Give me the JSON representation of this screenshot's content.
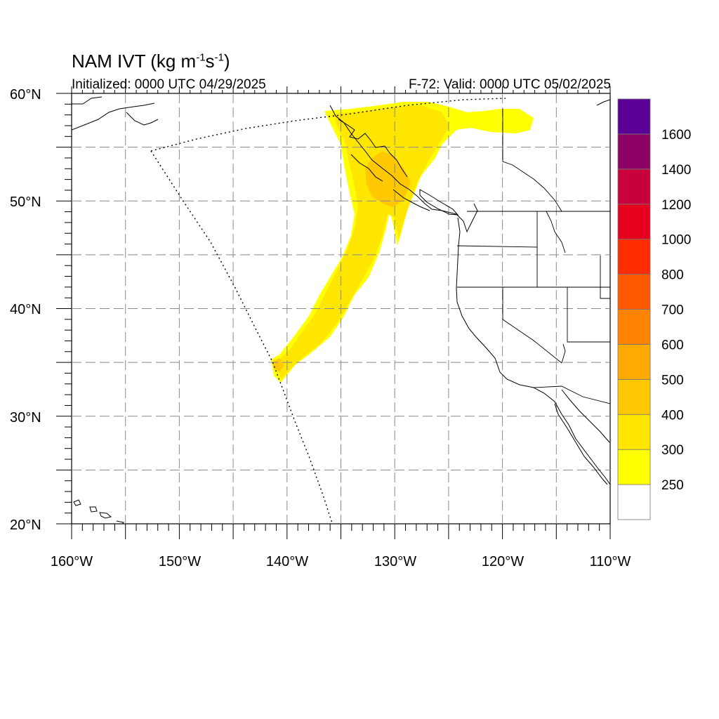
{
  "title": {
    "main": "NAM IVT (kg m",
    "sup1": "-1",
    "mid": "s",
    "sup2": "-1",
    "end": ")"
  },
  "initialized_label": "Initialized: 0000 UTC 04/29/2025",
  "valid_label": "F-72: Valid: 0000 UTC 05/02/2025",
  "axes": {
    "lat_labels": [
      "60°N",
      "50°N",
      "40°N",
      "30°N",
      "20°N"
    ],
    "lon_labels": [
      "160°W",
      "150°W",
      "140°W",
      "130°W",
      "120°W",
      "110°W"
    ],
    "lat_range": [
      20,
      60
    ],
    "lon_range": [
      -160,
      -110
    ]
  },
  "colorbar": {
    "levels": [
      {
        "label": "",
        "color": "#ffffff"
      },
      {
        "label": "250",
        "color": "#ffff00"
      },
      {
        "label": "300",
        "color": "#ffe600"
      },
      {
        "label": "400",
        "color": "#ffc800"
      },
      {
        "label": "500",
        "color": "#ffaa00"
      },
      {
        "label": "600",
        "color": "#ff8200"
      },
      {
        "label": "700",
        "color": "#ff5a00"
      },
      {
        "label": "800",
        "color": "#ff2d00"
      },
      {
        "label": "1000",
        "color": "#e6001e"
      },
      {
        "label": "1200",
        "color": "#c8003c"
      },
      {
        "label": "1400",
        "color": "#8c0064"
      },
      {
        "label": "1600",
        "color": "#5a0096"
      }
    ]
  },
  "ivt_plume": {
    "band": "300-500",
    "color_main": "#ffe600",
    "color_inner": "#ffc800",
    "color_edge": "#ffff00"
  }
}
